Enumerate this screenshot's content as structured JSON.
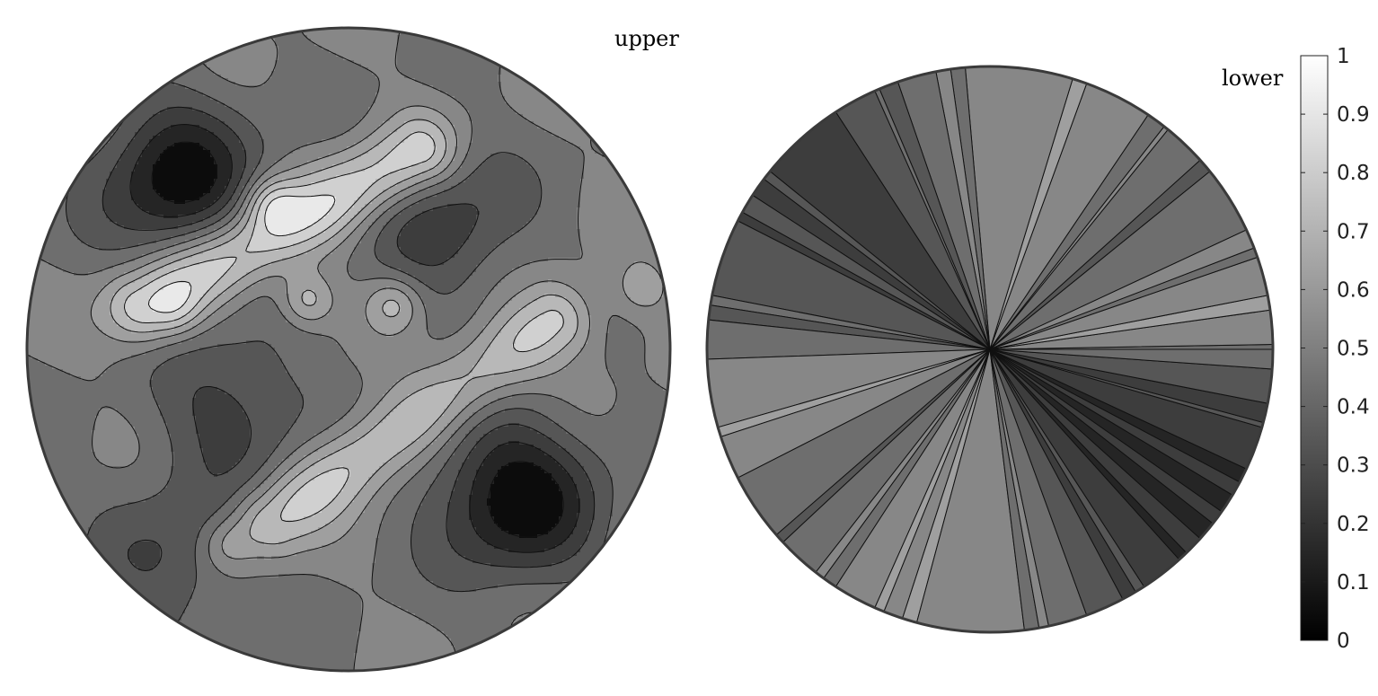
{
  "chart_data": [
    {
      "type": "heatmap",
      "title": "upper",
      "projection": "stereographic pole figure",
      "colormap": "gray",
      "contour_lines": true,
      "features": {
        "bright_ridges": [
          {
            "from_deg": [
              -58,
              12
            ],
            "to_deg": [
              20,
              55
            ],
            "level": 0.9
          },
          {
            "from_deg": [
              -22,
              -48
            ],
            "to_deg": [
              58,
              8
            ],
            "level": 0.85
          }
        ],
        "bright_peaks": [
          {
            "azimuth_deg": 130,
            "radius": 0.2,
            "level": 0.95
          },
          {
            "azimuth_deg": 118,
            "radius": 0.52,
            "level": 0.9
          },
          {
            "azimuth_deg": 168,
            "radius": 0.55,
            "level": 0.75
          },
          {
            "azimuth_deg": 45,
            "radius": 0.2,
            "level": 0.9
          },
          {
            "azimuth_deg": 12,
            "radius": 0.93,
            "level": 0.8
          },
          {
            "azimuth_deg": 238,
            "radius": 0.72,
            "level": 0.8
          }
        ],
        "dark_regions": [
          {
            "azimuth_deg": 135,
            "radius": 0.75,
            "level": 0.05
          },
          {
            "azimuth_deg": -42,
            "radius": 0.72,
            "level": 0.05
          },
          {
            "azimuth_deg": 53,
            "radius": 0.5,
            "level": 0.25
          },
          {
            "azimuth_deg": 208,
            "radius": 0.4,
            "level": 0.25
          },
          {
            "azimuth_deg": -35,
            "radius": 0.45,
            "level": 0.4
          },
          {
            "azimuth_deg": -130,
            "radius": 0.85,
            "level": 0.3
          }
        ],
        "base_level": 0.5
      }
    },
    {
      "type": "heatmap",
      "title": "lower",
      "projection": "stereographic pole figure",
      "colormap": "gray",
      "contour_lines": true,
      "pattern": "radial sectors",
      "sectors": [
        {
          "azimuth_deg": -26,
          "level": 0.2
        },
        {
          "azimuth_deg": -12,
          "level": 0.3
        },
        {
          "azimuth_deg": -4,
          "level": 0.4
        },
        {
          "azimuth_deg": 10,
          "level": 0.6
        },
        {
          "azimuth_deg": 16,
          "level": 0.55
        },
        {
          "azimuth_deg": 40,
          "level": 0.4
        },
        {
          "azimuth_deg": 70,
          "level": 0.6
        },
        {
          "azimuth_deg": 100,
          "level": 0.5
        },
        {
          "azimuth_deg": 128,
          "level": 0.25
        },
        {
          "azimuth_deg": 150,
          "level": 0.3
        },
        {
          "azimuth_deg": 172,
          "level": 0.4
        },
        {
          "azimuth_deg": 195,
          "level": 0.6
        },
        {
          "azimuth_deg": 220,
          "level": 0.4
        },
        {
          "azimuth_deg": 250,
          "level": 0.6
        },
        {
          "azimuth_deg": 280,
          "level": 0.5
        },
        {
          "azimuth_deg": 305,
          "level": 0.25
        },
        {
          "azimuth_deg": 320,
          "level": 0.2
        }
      ]
    }
  ],
  "colorbar": {
    "min": 0,
    "max": 1,
    "ticks": [
      "0",
      "0.1",
      "0.2",
      "0.3",
      "0.4",
      "0.5",
      "0.6",
      "0.7",
      "0.8",
      "0.9",
      "1"
    ]
  }
}
